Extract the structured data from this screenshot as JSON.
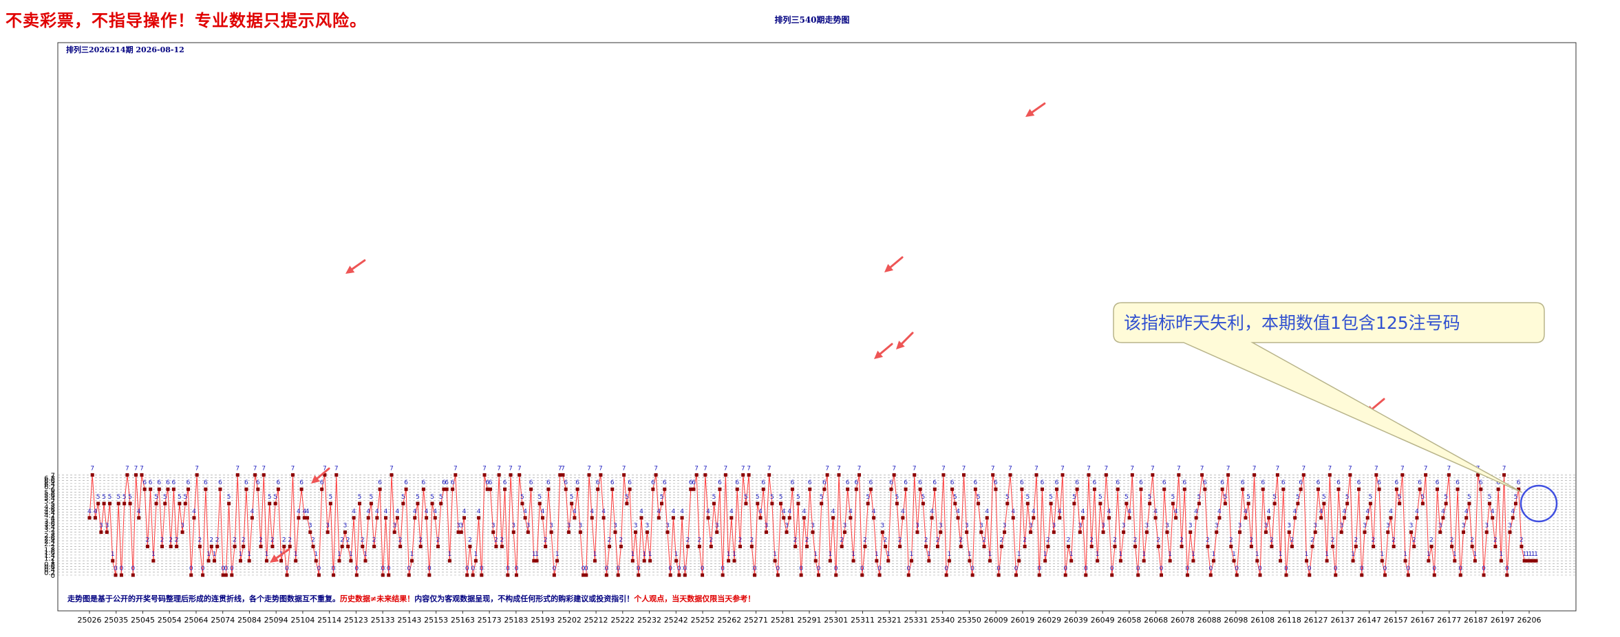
{
  "warning": "不卖彩票，不指导操作！专业数据只提示风险。",
  "page_title": "排列三540期走势图",
  "chart_data": {
    "type": "line",
    "title": "排列三2026214期  2026-08-12",
    "y_ticks": [
      "0",
      "0.2",
      "0.4",
      "0.6",
      "0.8",
      "1",
      "1.2",
      "1.4",
      "1.6",
      "1.8",
      "2",
      "2.2",
      "2.4",
      "2.6",
      "2.8",
      "3",
      "3.2",
      "3.4",
      "3.6",
      "3.8",
      "4",
      "4.2",
      "4.4",
      "4.6",
      "4.8",
      "5",
      "5.2",
      "5.4",
      "5.6",
      "5.8",
      "6",
      "6.2",
      "6.4",
      "6.6",
      "6.8",
      "7"
    ],
    "ylim": [
      0,
      7.2
    ],
    "grid": true,
    "x_tick_labels": [
      "25026",
      "25035",
      "25045",
      "25054",
      "25064",
      "25074",
      "25084",
      "25094",
      "25104",
      "25114",
      "25123",
      "25133",
      "25143",
      "25153",
      "25163",
      "25173",
      "25183",
      "25193",
      "25202",
      "25212",
      "25222",
      "25232",
      "25242",
      "25252",
      "25262",
      "25271",
      "25281",
      "25291",
      "25301",
      "25311",
      "25321",
      "25331",
      "25340",
      "25350",
      "26009",
      "26019",
      "26029",
      "26039",
      "26049",
      "26058",
      "26068",
      "26078",
      "26088",
      "26098",
      "26108",
      "26118",
      "26127",
      "26137",
      "26147",
      "26157",
      "26167",
      "26177",
      "26187",
      "26197",
      "26206"
    ],
    "values": [
      4,
      7,
      4,
      5,
      3,
      5,
      3,
      5,
      1,
      0,
      5,
      0,
      5,
      7,
      5,
      0,
      7,
      4,
      7,
      6,
      2,
      6,
      1,
      5,
      6,
      2,
      5,
      6,
      2,
      6,
      2,
      5,
      3,
      5,
      6,
      0,
      4,
      7,
      2,
      0,
      6,
      1,
      2,
      1,
      2,
      6,
      0,
      0,
      5,
      0,
      2,
      7,
      1,
      2,
      6,
      1,
      4,
      7,
      6,
      2,
      7,
      1,
      5,
      2,
      5,
      6,
      1,
      2,
      0,
      2,
      7,
      1,
      4,
      6,
      4,
      4,
      3,
      2,
      1,
      0,
      6,
      7,
      3,
      5,
      0,
      7,
      1,
      2,
      3,
      2,
      1,
      4,
      0,
      5,
      2,
      1,
      4,
      5,
      2,
      4,
      6,
      0,
      4,
      0,
      7,
      3,
      4,
      2,
      5,
      6,
      0,
      1,
      4,
      5,
      2,
      6,
      4,
      0,
      5,
      4,
      2,
      5,
      6,
      6,
      1,
      6,
      7,
      3,
      3,
      4,
      0,
      2,
      0,
      1,
      4,
      0,
      7,
      6,
      6,
      3,
      2,
      7,
      2,
      6,
      0,
      7,
      3,
      0,
      7,
      5,
      4,
      3,
      6,
      1,
      1,
      5,
      4,
      2,
      6,
      3,
      0,
      1,
      7,
      7,
      6,
      3,
      5,
      4,
      6,
      3,
      0,
      0,
      7,
      4,
      1,
      6,
      7,
      4,
      0,
      2,
      6,
      3,
      0,
      2,
      7,
      5,
      6,
      1,
      3,
      0,
      4,
      1,
      3,
      1,
      6,
      7,
      4,
      5,
      6,
      3,
      0,
      4,
      1,
      0,
      4,
      0,
      2,
      6,
      6,
      7,
      2,
      0,
      7,
      4,
      2,
      5,
      3,
      6,
      0,
      7,
      1,
      4,
      1,
      6,
      2,
      7,
      5,
      7,
      2,
      0,
      5,
      4,
      6,
      3,
      7,
      5,
      1,
      0,
      5,
      4,
      3,
      4,
      6,
      2,
      5,
      0,
      4,
      2,
      6,
      3,
      1,
      0,
      5,
      6,
      7,
      1,
      4,
      0,
      7,
      2,
      3,
      6,
      4,
      1,
      6,
      7,
      0,
      2,
      5,
      6,
      4,
      1,
      0,
      3,
      2,
      1,
      6,
      7,
      5,
      2,
      4,
      6,
      0,
      1,
      7,
      3,
      6,
      5,
      2,
      1,
      4,
      6,
      2,
      3,
      7,
      0,
      1,
      6,
      5,
      4,
      2,
      7,
      3,
      1,
      0,
      6,
      5,
      3,
      2,
      4,
      1,
      7,
      6,
      0,
      2,
      3,
      5,
      7,
      4,
      0,
      1,
      6,
      2,
      5,
      3,
      4,
      7,
      0,
      6,
      1,
      2,
      5,
      3,
      6,
      4,
      7,
      0,
      2,
      1,
      5,
      6,
      3,
      4,
      0,
      7,
      2,
      6,
      1,
      5,
      3,
      7,
      4,
      0,
      2,
      6,
      1,
      3,
      5,
      4,
      7,
      2,
      0,
      6,
      1,
      3,
      5,
      7,
      4,
      2,
      0,
      6,
      3,
      1,
      5,
      4,
      7,
      2,
      6,
      0,
      3,
      1,
      4,
      5,
      7,
      6,
      2,
      0,
      1,
      3,
      4,
      6,
      5,
      7,
      2,
      1,
      0,
      3,
      6,
      4,
      5,
      2,
      7,
      1,
      0,
      6,
      3,
      4,
      2,
      5,
      7,
      1,
      6,
      0,
      3,
      2,
      4,
      5,
      6,
      7,
      1,
      0,
      2,
      3,
      6,
      4,
      5,
      1,
      7,
      2,
      0,
      6,
      3,
      4,
      5,
      7,
      1,
      2,
      6,
      0,
      3,
      4,
      5,
      2,
      7,
      6,
      1,
      0,
      3,
      4,
      2,
      6,
      5,
      7,
      1,
      0,
      3,
      2,
      4,
      6,
      5,
      7,
      1,
      2,
      0,
      6,
      3,
      4,
      5,
      7,
      2,
      1,
      6,
      0,
      3,
      4,
      5,
      2,
      1,
      7,
      6,
      0,
      3,
      5,
      4,
      2,
      6,
      1,
      7,
      0,
      3,
      4,
      5,
      6,
      2,
      1,
      1,
      1,
      1,
      1
    ]
  },
  "footer": {
    "part1": "走势图是基于公开的开奖号码整理后形成的连贯折线，各个走势图数据互不重复。",
    "part2": "历史数据≠未来结果！",
    "part3": "内容仅为客观数据呈现，不构成任何形式的购彩建议或投资指引！",
    "part4": "个人观点，当天数据仅限当天参考！"
  },
  "callout": "该指标昨天失利，本期数值1包含125注号码",
  "colors": {
    "line": "#ff3b3b",
    "marker": "#8b0000",
    "label": "#2020c0",
    "title": "#000080",
    "warning": "#e00000",
    "arrow": "#ee5555",
    "callout_bg": "#fffbd8",
    "callout_border": "#b8b48a",
    "callout_text": "#3050d0",
    "circle": "#4050e0",
    "grid": "#999999"
  }
}
